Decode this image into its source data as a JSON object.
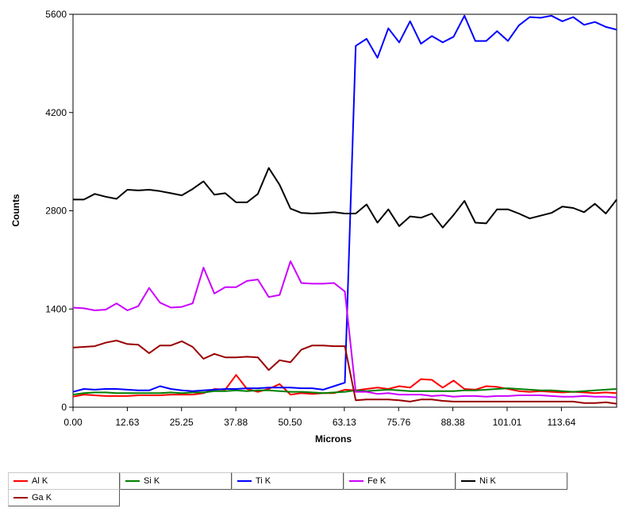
{
  "chart_data": {
    "type": "line",
    "xlabel": "Microns",
    "ylabel": "Counts",
    "xlim": [
      0,
      126.5
    ],
    "ylim": [
      0,
      5600
    ],
    "x_ticks": [
      "0.00",
      "12.63",
      "25.25",
      "37.88",
      "50.50",
      "63.13",
      "75.76",
      "88.38",
      "101.01",
      "113.64"
    ],
    "y_ticks": [
      "0",
      "1400",
      "2800",
      "4200",
      "5600"
    ],
    "grid": false,
    "legend_position": "bottom",
    "x": [
      0,
      2.53,
      5.06,
      7.59,
      10.12,
      12.65,
      15.18,
      17.71,
      20.24,
      22.77,
      25.3,
      27.83,
      30.36,
      32.89,
      35.42,
      37.95,
      40.48,
      43.01,
      45.54,
      48.07,
      50.6,
      53.13,
      55.66,
      58.19,
      60.72,
      63.25,
      65.78,
      68.31,
      70.84,
      73.37,
      75.9,
      78.43,
      80.96,
      83.49,
      86.02,
      88.55,
      91.08,
      93.61,
      96.14,
      98.67,
      101.2,
      103.73,
      106.26,
      108.79,
      111.32,
      113.85,
      116.38,
      118.91,
      121.44,
      123.97,
      126.5
    ],
    "series": [
      {
        "name": "Al K",
        "color": "#ff0000",
        "values": [
          150,
          180,
          170,
          160,
          160,
          160,
          170,
          170,
          170,
          180,
          180,
          180,
          200,
          260,
          250,
          460,
          260,
          220,
          260,
          330,
          180,
          200,
          190,
          200,
          200,
          250,
          240,
          260,
          280,
          260,
          300,
          280,
          400,
          390,
          280,
          380,
          260,
          250,
          300,
          290,
          260,
          230,
          220,
          230,
          220,
          210,
          220,
          210,
          200,
          210,
          200
        ]
      },
      {
        "name": "Si K",
        "color": "#008000",
        "values": [
          180,
          200,
          210,
          210,
          200,
          200,
          200,
          200,
          200,
          210,
          200,
          210,
          210,
          230,
          230,
          240,
          230,
          240,
          240,
          230,
          220,
          220,
          210,
          200,
          210,
          220,
          240,
          230,
          240,
          250,
          240,
          230,
          230,
          230,
          230,
          230,
          240,
          240,
          250,
          260,
          270,
          260,
          250,
          240,
          240,
          230,
          220,
          230,
          240,
          250,
          260
        ]
      },
      {
        "name": "Ti K",
        "color": "#0000ff",
        "values": [
          220,
          260,
          250,
          260,
          260,
          250,
          240,
          240,
          300,
          260,
          240,
          230,
          240,
          250,
          260,
          260,
          270,
          270,
          280,
          280,
          280,
          270,
          270,
          250,
          300,
          350,
          5150,
          5250,
          4980,
          5400,
          5200,
          5500,
          5180,
          5290,
          5200,
          5280,
          5580,
          5220,
          5220,
          5360,
          5220,
          5440,
          5560,
          5550,
          5580,
          5500,
          5560,
          5450,
          5490,
          5420,
          5380
        ]
      },
      {
        "name": "Fe K",
        "color": "#cc00ff",
        "values": [
          1420,
          1410,
          1380,
          1390,
          1480,
          1380,
          1440,
          1700,
          1490,
          1420,
          1430,
          1480,
          1990,
          1620,
          1710,
          1710,
          1800,
          1820,
          1570,
          1600,
          2080,
          1770,
          1760,
          1760,
          1770,
          1650,
          220,
          220,
          190,
          200,
          180,
          180,
          180,
          160,
          170,
          150,
          160,
          160,
          150,
          160,
          160,
          170,
          170,
          170,
          160,
          150,
          150,
          160,
          150,
          150,
          140
        ]
      },
      {
        "name": "Ni K",
        "color": "#000000",
        "values": [
          2960,
          2960,
          3040,
          3000,
          2970,
          3100,
          3090,
          3100,
          3080,
          3050,
          3020,
          3110,
          3220,
          3030,
          3050,
          2920,
          2920,
          3040,
          3410,
          3170,
          2830,
          2770,
          2760,
          2770,
          2780,
          2760,
          2760,
          2890,
          2630,
          2820,
          2580,
          2720,
          2700,
          2760,
          2560,
          2740,
          2940,
          2630,
          2620,
          2820,
          2820,
          2760,
          2690,
          2730,
          2770,
          2860,
          2840,
          2780,
          2900,
          2760,
          2960
        ]
      },
      {
        "name": "Ga K",
        "color": "#990000",
        "values": [
          850,
          860,
          870,
          920,
          950,
          900,
          890,
          770,
          880,
          880,
          940,
          860,
          690,
          760,
          710,
          710,
          720,
          710,
          530,
          670,
          640,
          820,
          880,
          880,
          870,
          870,
          100,
          110,
          110,
          110,
          100,
          80,
          110,
          110,
          90,
          80,
          80,
          80,
          80,
          80,
          80,
          80,
          80,
          80,
          80,
          80,
          80,
          60,
          60,
          70,
          50
        ]
      }
    ]
  }
}
